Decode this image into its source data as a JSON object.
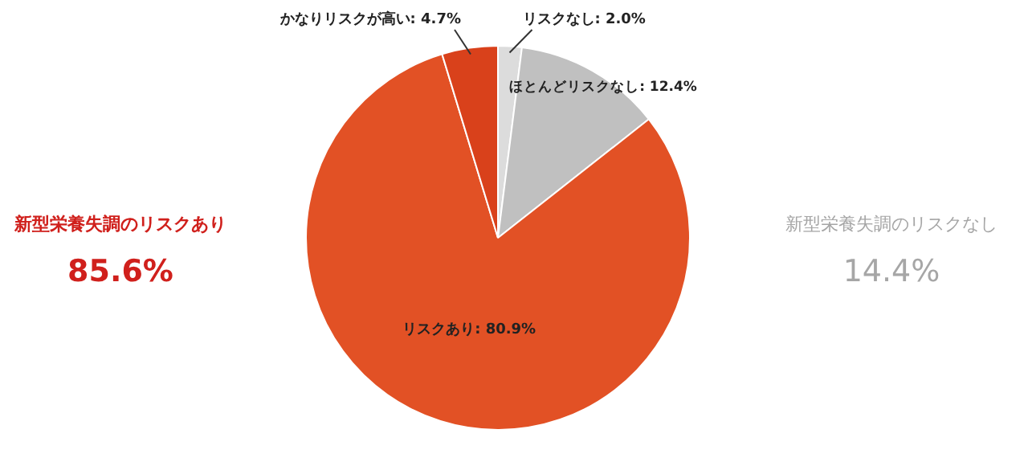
{
  "chart_data": {
    "type": "pie",
    "categories": [
      "リスクなし",
      "ほとんどリスクなし",
      "リスクあり",
      "かなりリスクが高い"
    ],
    "values": [
      2.0,
      12.4,
      80.9,
      4.7
    ],
    "colors": [
      "#dcdcdc",
      "#c0c0c0",
      "#e25125",
      "#d9411b"
    ],
    "value_labels": [
      "2.0%",
      "12.4%",
      "80.9%",
      "4.7%"
    ],
    "annotations": [
      "新型栄養失調のリスクあり",
      "85.6%",
      "新型栄養失調のリスクなし",
      "14.4%"
    ],
    "legend": false
  }
}
